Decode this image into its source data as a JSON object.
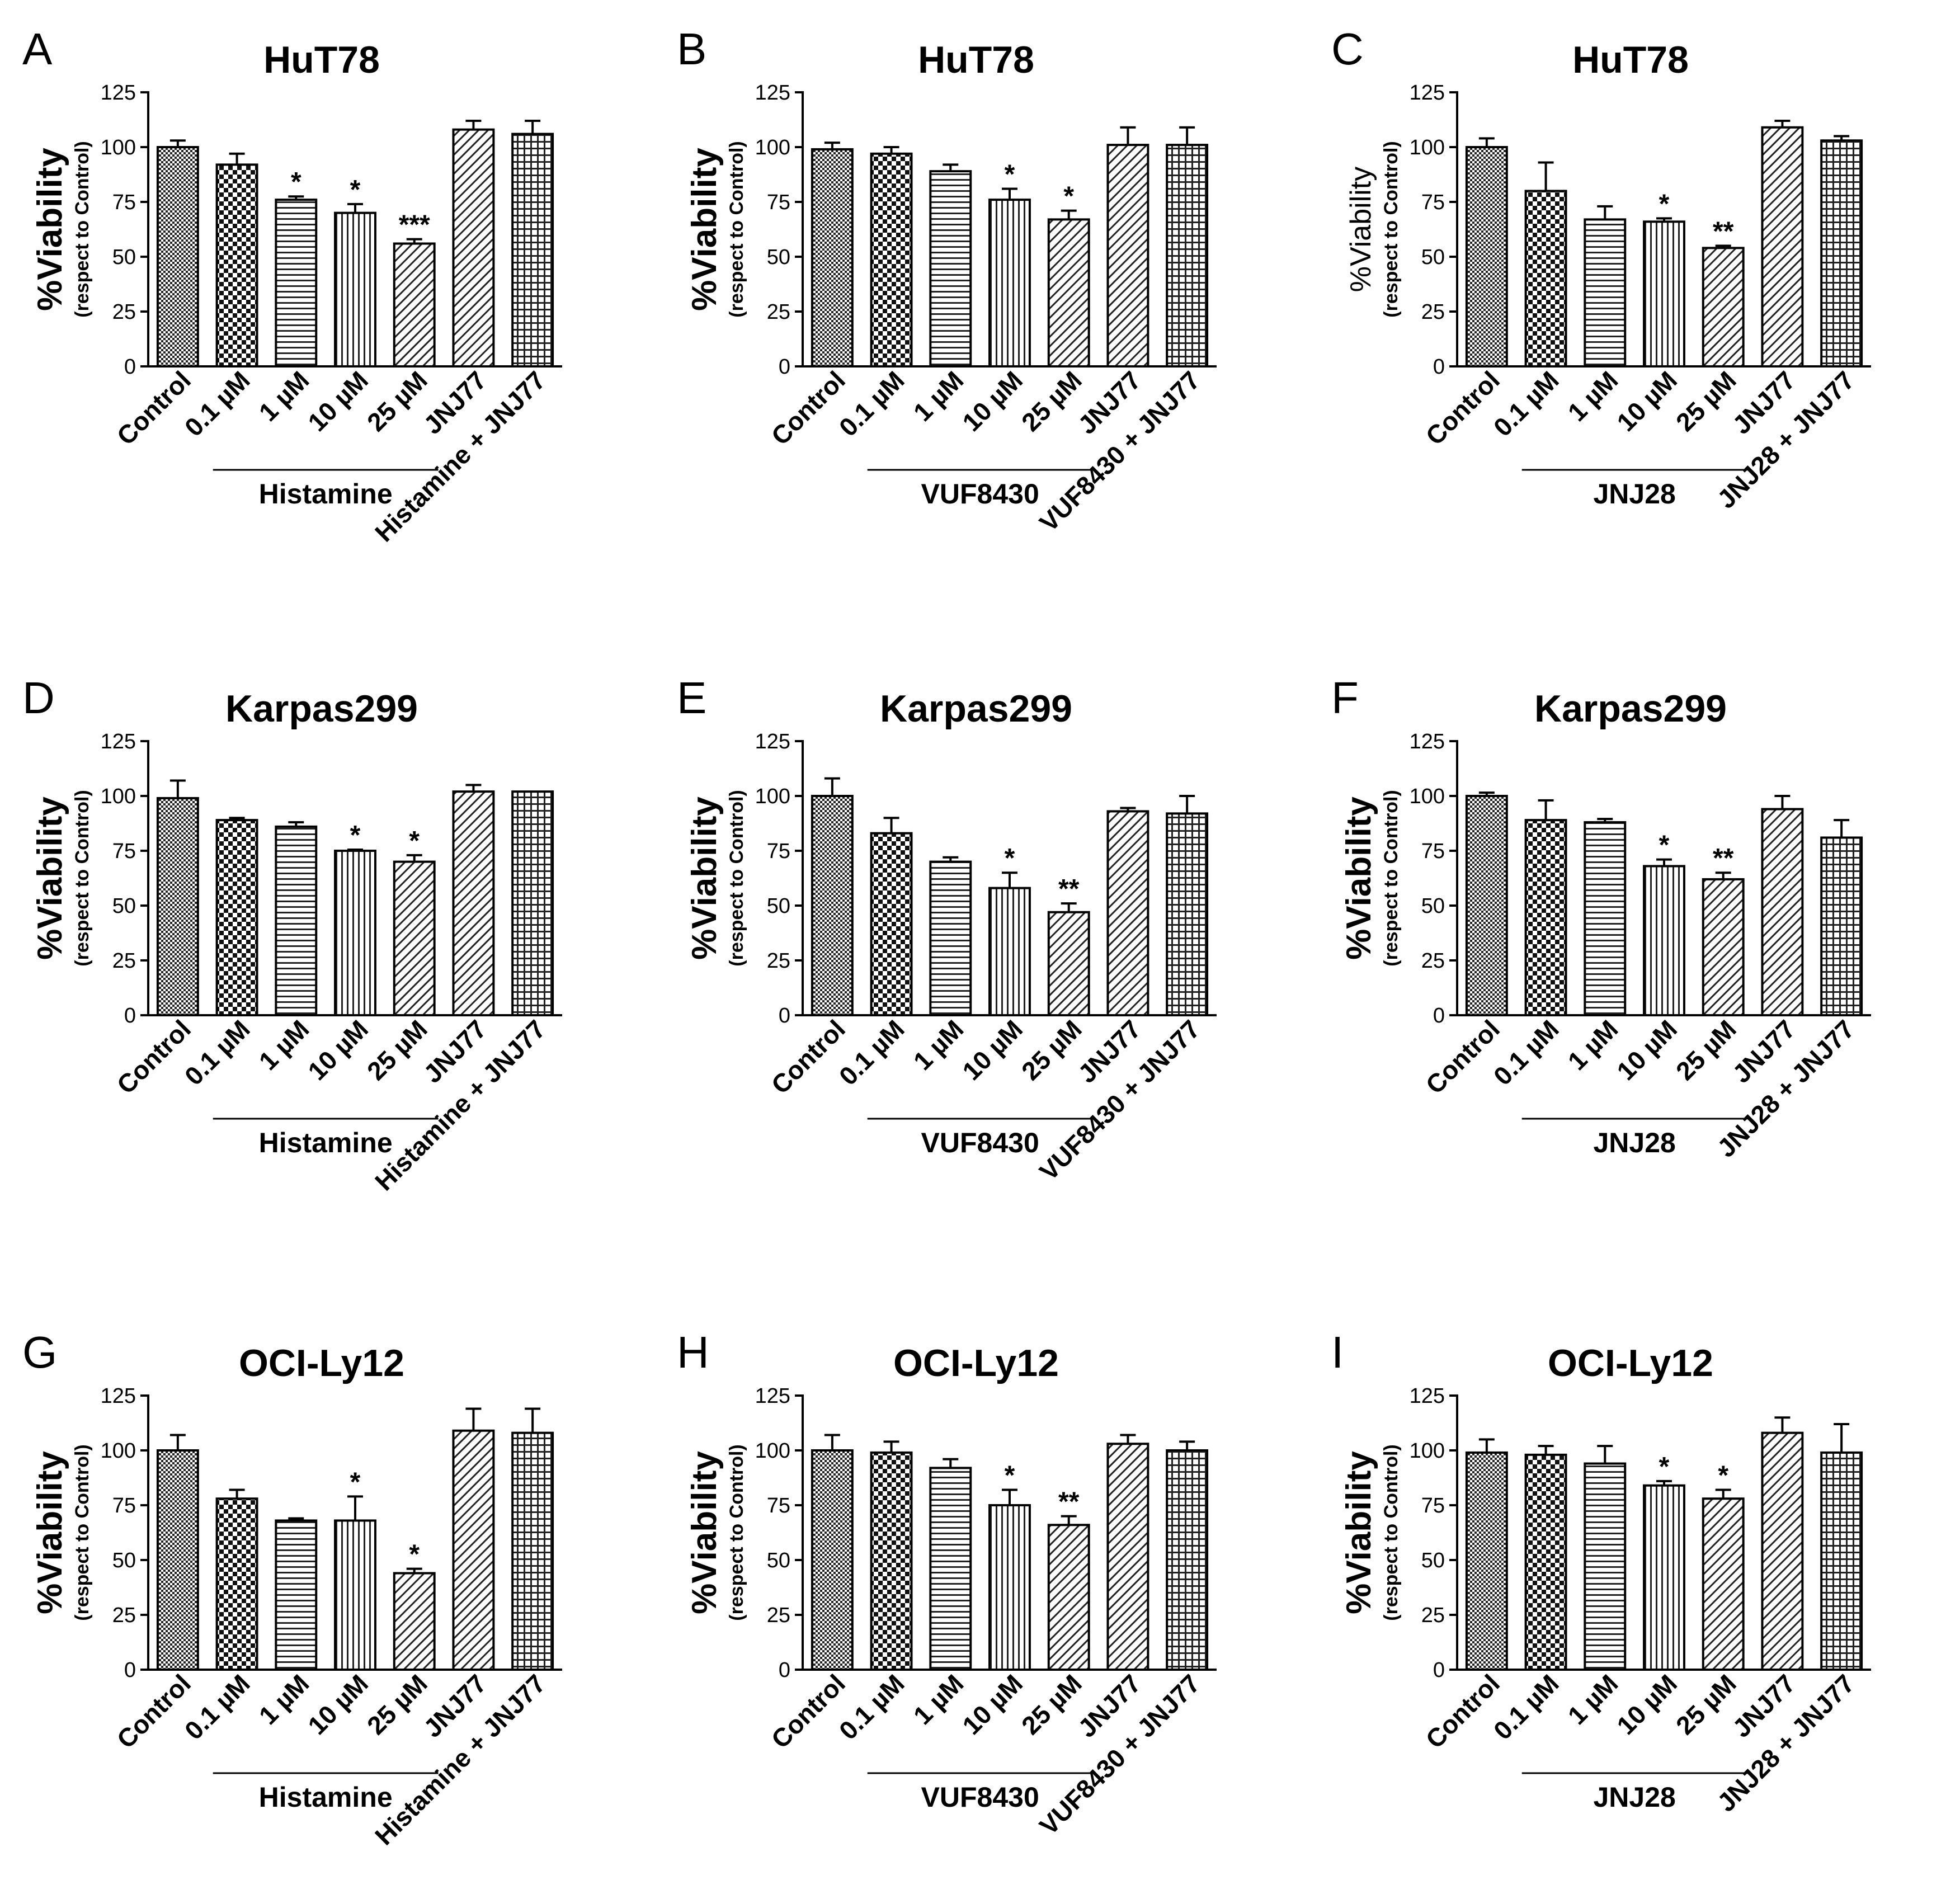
{
  "figure": {
    "y_axis": {
      "label": "%Viability",
      "sublabel": "(respect to Control)",
      "ylim": [
        0,
        125
      ],
      "ticks": [
        0,
        25,
        50,
        75,
        100,
        125
      ]
    }
  },
  "chart_data": [
    {
      "panel": "A",
      "type": "bar",
      "title": "HuT78",
      "categories": [
        "Control",
        "0.1 µM",
        "1 µM",
        "10 µM",
        "25 µM",
        "JNJ77",
        "Histamine + JNJ77"
      ],
      "values": [
        100,
        92,
        76,
        70,
        56,
        108,
        106
      ],
      "errors": [
        3,
        5,
        1.5,
        4,
        2,
        4,
        6
      ],
      "significance": [
        "",
        "",
        "*",
        "*",
        "***",
        "",
        ""
      ],
      "patterns": [
        "checker-fine",
        "checker",
        "hlines",
        "vlines",
        "diag",
        "diag",
        "grid"
      ],
      "group_label": "Histamine",
      "group_range": [
        1,
        4
      ]
    },
    {
      "panel": "B",
      "type": "bar",
      "title": "HuT78",
      "categories": [
        "Control",
        "0.1 µM",
        "1 µM",
        "10 µM",
        "25 µM",
        "JNJ77",
        "VUF8430 + JNJ77"
      ],
      "values": [
        99,
        97,
        89,
        76,
        67,
        101,
        101
      ],
      "errors": [
        3,
        3,
        3,
        5,
        4,
        8,
        8
      ],
      "significance": [
        "",
        "",
        "",
        "*",
        "*",
        "",
        ""
      ],
      "patterns": [
        "checker-fine",
        "checker",
        "hlines",
        "vlines",
        "diag",
        "diag",
        "grid"
      ],
      "group_label": "VUF8430",
      "group_range": [
        1,
        4
      ]
    },
    {
      "panel": "C",
      "type": "bar",
      "title": "HuT78",
      "categories": [
        "Control",
        "0.1 µM",
        "1 µM",
        "10 µM",
        "25 µM",
        "JNJ77",
        "JNJ28 + JNJ77"
      ],
      "values": [
        100,
        80,
        67,
        66,
        54,
        109,
        103
      ],
      "errors": [
        4,
        13,
        6,
        1.5,
        1,
        3,
        2
      ],
      "significance": [
        "",
        "",
        "",
        "*",
        "**",
        "",
        ""
      ],
      "patterns": [
        "checker-fine",
        "checker",
        "hlines",
        "vlines",
        "diag",
        "diag",
        "grid"
      ],
      "group_label": "JNJ28",
      "group_range": [
        1,
        4
      ],
      "thin_ylabel": true
    },
    {
      "panel": "D",
      "type": "bar",
      "title": "Karpas299",
      "categories": [
        "Control",
        "0.1 µM",
        "1 µM",
        "10 µM",
        "25 µM",
        "JNJ77",
        "Histamine + JNJ77"
      ],
      "values": [
        99,
        89,
        86,
        75,
        70,
        102,
        102
      ],
      "errors": [
        8,
        1,
        2,
        0.5,
        3,
        3,
        0
      ],
      "significance": [
        "",
        "",
        "",
        "*",
        "*",
        "",
        ""
      ],
      "patterns": [
        "checker-fine",
        "checker",
        "hlines",
        "vlines",
        "diag",
        "diag",
        "grid"
      ],
      "group_label": "Histamine",
      "group_range": [
        1,
        4
      ]
    },
    {
      "panel": "E",
      "type": "bar",
      "title": "Karpas299",
      "categories": [
        "Control",
        "0.1 µM",
        "1 µM",
        "10 µM",
        "25 µM",
        "JNJ77",
        "VUF8430 + JNJ77"
      ],
      "values": [
        100,
        83,
        70,
        58,
        47,
        93,
        92
      ],
      "errors": [
        8,
        7,
        2,
        7,
        4,
        1.5,
        8
      ],
      "significance": [
        "",
        "",
        "",
        "*",
        "**",
        "",
        ""
      ],
      "patterns": [
        "checker-fine",
        "checker",
        "hlines",
        "vlines",
        "diag",
        "diag",
        "grid"
      ],
      "group_label": "VUF8430",
      "group_range": [
        1,
        4
      ]
    },
    {
      "panel": "F",
      "type": "bar",
      "title": "Karpas299",
      "categories": [
        "Control",
        "0.1 µM",
        "1 µM",
        "10 µM",
        "25 µM",
        "JNJ77",
        "JNJ28 + JNJ77"
      ],
      "values": [
        100,
        89,
        88,
        68,
        62,
        94,
        81
      ],
      "errors": [
        1.5,
        9,
        1.5,
        3,
        3,
        6,
        8
      ],
      "significance": [
        "",
        "",
        "",
        "*",
        "**",
        "",
        ""
      ],
      "patterns": [
        "checker-fine",
        "checker",
        "hlines",
        "vlines",
        "diag",
        "diag",
        "grid"
      ],
      "group_label": "JNJ28",
      "group_range": [
        1,
        4
      ]
    },
    {
      "panel": "G",
      "type": "bar",
      "title": "OCI-Ly12",
      "categories": [
        "Control",
        "0.1 µM",
        "1 µM",
        "10 µM",
        "25 µM",
        "JNJ77",
        "Histamine + JNJ77"
      ],
      "values": [
        100,
        78,
        68,
        68,
        44,
        109,
        108
      ],
      "errors": [
        7,
        4,
        1,
        11,
        2,
        10,
        11
      ],
      "significance": [
        "",
        "",
        "",
        "*",
        "*",
        "",
        ""
      ],
      "patterns": [
        "checker-fine",
        "checker",
        "hlines",
        "vlines",
        "diag",
        "diag",
        "grid"
      ],
      "group_label": "Histamine",
      "group_range": [
        1,
        4
      ]
    },
    {
      "panel": "H",
      "type": "bar",
      "title": "OCI-Ly12",
      "categories": [
        "Control",
        "0.1 µM",
        "1 µM",
        "10 µM",
        "25 µM",
        "JNJ77",
        "VUF8430 + JNJ77"
      ],
      "values": [
        100,
        99,
        92,
        75,
        66,
        103,
        100
      ],
      "errors": [
        7,
        5,
        4,
        7,
        4,
        4,
        4
      ],
      "significance": [
        "",
        "",
        "",
        "*",
        "**",
        "",
        ""
      ],
      "patterns": [
        "checker-fine",
        "checker",
        "hlines",
        "vlines",
        "diag",
        "diag",
        "grid"
      ],
      "group_label": "VUF8430",
      "group_range": [
        1,
        4
      ]
    },
    {
      "panel": "I",
      "type": "bar",
      "title": "OCI-Ly12",
      "categories": [
        "Control",
        "0.1 µM",
        "1 µM",
        "10 µM",
        "25 µM",
        "JNJ77",
        "JNJ28 + JNJ77"
      ],
      "values": [
        99,
        98,
        94,
        84,
        78,
        108,
        99
      ],
      "errors": [
        6,
        4,
        8,
        2,
        4,
        7,
        13
      ],
      "significance": [
        "",
        "",
        "",
        "*",
        "*",
        "",
        ""
      ],
      "patterns": [
        "checker-fine",
        "checker",
        "hlines",
        "vlines",
        "diag",
        "diag",
        "grid"
      ],
      "group_label": "JNJ28",
      "group_range": [
        1,
        4
      ]
    }
  ]
}
